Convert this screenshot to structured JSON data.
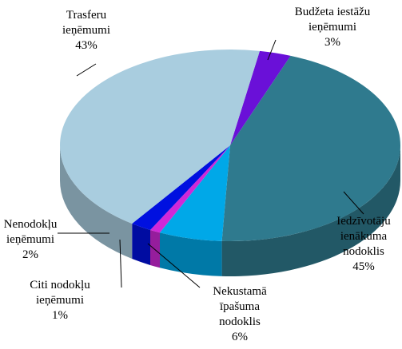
{
  "chart_data": {
    "type": "pie",
    "categories": [
      "Budžeta iestāžu ieņēmumi",
      "Iedzīvotāju ienākuma nodoklis",
      "Nekustamā īpašuma nodoklis",
      "Citi nodokļu ieņēmumi",
      "Nenodokļu ieņēmumi",
      "Trasferu ieņēmumi"
    ],
    "values": [
      3,
      45,
      6,
      1,
      2,
      43
    ],
    "value_labels": [
      "3%",
      "45%",
      "6%",
      "1%",
      "2%",
      "43%"
    ],
    "colors": [
      "#6a10d8",
      "#2f7a8e",
      "#00a8e8",
      "#d028d8",
      "#0010e0",
      "#a9cddf"
    ]
  }
}
